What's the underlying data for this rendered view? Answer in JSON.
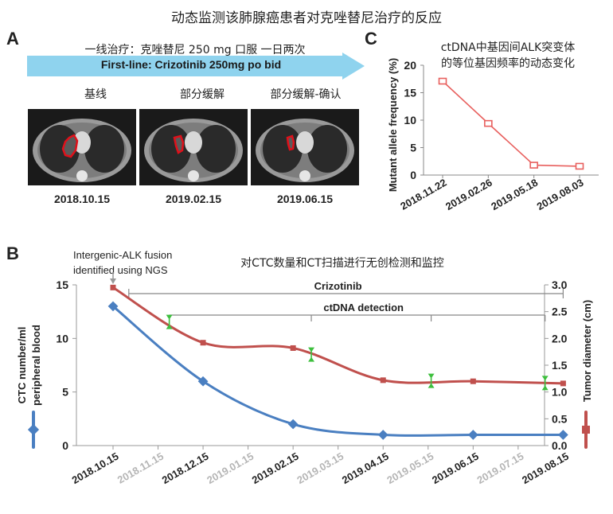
{
  "figure_title": "动态监测该肺腺癌患者对克唑替尼治疗的反应",
  "panel_a": {
    "letter": "A",
    "treatment_cn": "一线治疗：克唑替尼 250 mg 口服 一日两次",
    "treatment_en": "First-line:  Crizotinib    250mg po bid",
    "scans": [
      {
        "label": "基线",
        "date": "2018.10.15"
      },
      {
        "label": "部分缓解",
        "date": "2019.02.15"
      },
      {
        "label": "部分缓解-确认",
        "date": "2019.06.15"
      }
    ],
    "colors": {
      "arrow": "#8fd3ee",
      "outline": "#e0101a"
    }
  },
  "panel_c": {
    "letter": "C",
    "title_line1": "ctDNA中基因间ALK突变体",
    "title_line2": "的等位基因频率的动态变化"
  },
  "panel_b": {
    "letter": "B",
    "title": "对CTC数量和CT扫描进行无创检测和监控",
    "annotation_line1": "Intergenic-ALK fusion",
    "annotation_line2": "identified using NGS",
    "crizotinib_label": "Crizotinib",
    "ctdna_label": "ctDNA detection"
  },
  "chart_data": [
    {
      "type": "line",
      "panel": "C",
      "ylabel": "Mutant allele frequency (%)",
      "categories": [
        "2018.11.22",
        "2019.02.26",
        "2019.05.18",
        "2019.08.03"
      ],
      "values": [
        17.1,
        9.4,
        1.8,
        1.6
      ],
      "ylim": [
        0,
        20
      ],
      "yticks": [
        0,
        5,
        10,
        15,
        20
      ],
      "color": "#e8605e"
    },
    {
      "type": "line",
      "panel": "B",
      "categories": [
        "2018.10.15",
        "2018.11.15",
        "2018.12.15",
        "2019.01.15",
        "2019.02.15",
        "2019.03.15",
        "2019.04.15",
        "2019.05.15",
        "2019.06.15",
        "2019.07.15",
        "2019.08.15"
      ],
      "bold_categories": [
        "2018.10.15",
        "2018.12.15",
        "2019.02.15",
        "2019.04.15",
        "2019.06.15",
        "2019.08.15"
      ],
      "ylabel_left_line1": "CTC number/ml",
      "ylabel_left_line2": "peripheral blood",
      "ylabel_right": "Tumor diameter (cm)",
      "ylim_left": [
        0,
        15
      ],
      "yticks_left": [
        0,
        5,
        10,
        15
      ],
      "ylim_right": [
        0,
        3.0
      ],
      "yticks_right": [
        "0.0",
        "0.5",
        "1.0",
        "1.5",
        "2.0",
        "2.5",
        "3.0"
      ],
      "series": [
        {
          "axis": "left",
          "color": "#4a7fc1",
          "points": [
            [
              "2018.10.15",
              13
            ],
            [
              "2018.12.15",
              6
            ],
            [
              "2019.02.15",
              2
            ],
            [
              "2019.04.15",
              1
            ],
            [
              "2019.06.15",
              1
            ],
            [
              "2019.08.15",
              1
            ]
          ]
        },
        {
          "axis": "right",
          "color": "#c0504d",
          "points": [
            [
              "2018.10.15",
              2.95
            ],
            [
              "2018.12.15",
              1.92
            ],
            [
              "2019.02.15",
              1.82
            ],
            [
              "2019.04.15",
              1.22
            ],
            [
              "2019.06.15",
              1.2
            ],
            [
              "2019.08.15",
              1.16
            ]
          ]
        }
      ],
      "ctdna_markers": [
        "2018.11.22",
        "2019.02.26",
        "2019.05.18",
        "2019.08.03"
      ],
      "ctdna_marker_color": "#3dbf3d"
    }
  ]
}
